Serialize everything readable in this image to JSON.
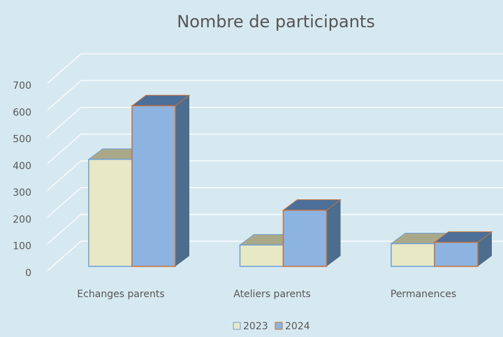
{
  "chart_data": {
    "type": "bar3d",
    "title": "Nombre de participants",
    "categories": [
      "Echanges parents",
      "Ateliers parents",
      "Permanences"
    ],
    "series": [
      {
        "name": "2023",
        "color": "#e6e8c6",
        "values": [
          400,
          80,
          85
        ]
      },
      {
        "name": "2024",
        "color": "#8db3e0",
        "values": [
          600,
          210,
          90
        ]
      }
    ],
    "ylim": [
      0,
      700
    ],
    "yticks": [
      0,
      100,
      200,
      300,
      400,
      500,
      600,
      700
    ],
    "grid": true,
    "legend": "bottom"
  }
}
